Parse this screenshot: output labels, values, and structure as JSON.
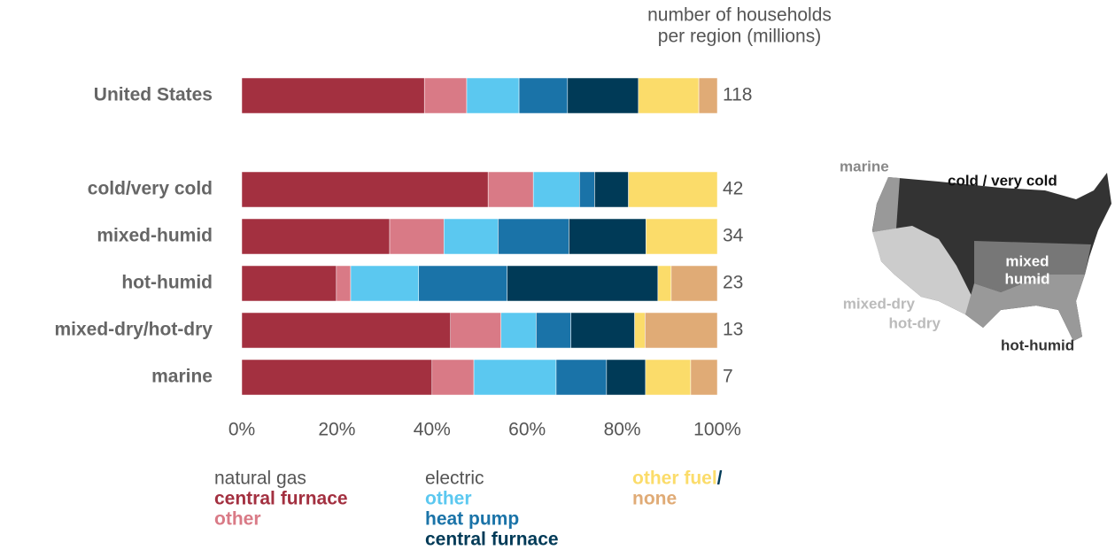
{
  "chart_data": {
    "type": "stacked-bar",
    "categories": [
      "United States",
      "cold/very cold",
      "mixed-humid",
      "hot-humid",
      "mixed-dry/hot-dry",
      "marine"
    ],
    "series": [
      {
        "name": "central furnace",
        "group": "natural gas",
        "color": "#a33040",
        "values": [
          38.4,
          51.8,
          31.1,
          19.9,
          43.9,
          40.0
        ]
      },
      {
        "name": "other",
        "group": "natural gas",
        "color": "#d97a86",
        "values": [
          8.9,
          9.5,
          11.4,
          3.0,
          10.6,
          8.8
        ]
      },
      {
        "name": "other",
        "group": "electric",
        "color": "#5bc8f0",
        "values": [
          11.0,
          9.7,
          11.4,
          14.3,
          7.4,
          17.3
        ]
      },
      {
        "name": "heat pump",
        "group": "electric",
        "color": "#1a73a8",
        "values": [
          10.2,
          3.2,
          14.9,
          18.6,
          7.3,
          10.6
        ]
      },
      {
        "name": "central furnace",
        "group": "electric",
        "color": "#003a57",
        "values": [
          14.9,
          7.1,
          16.2,
          31.7,
          13.4,
          8.2
        ]
      },
      {
        "name": "other fuel",
        "color": "#fbdc6a",
        "values": [
          12.7,
          18.7,
          15.0,
          2.8,
          2.2,
          9.5
        ]
      },
      {
        "name": "none",
        "color": "#e0ab76",
        "values": [
          3.9,
          0,
          0,
          9.7,
          15.2,
          5.6
        ]
      }
    ],
    "legend_separator": "/",
    "xlim": [
      0,
      100
    ],
    "xticks": [
      {
        "value": 0,
        "label": "0%"
      },
      {
        "value": 20,
        "label": "20%"
      },
      {
        "value": 40,
        "label": "40%"
      },
      {
        "value": 60,
        "label": "60%"
      },
      {
        "value": 80,
        "label": "80%"
      },
      {
        "value": 100,
        "label": "100%"
      }
    ],
    "households_title": [
      "number of households",
      "per region (millions)"
    ],
    "households": [
      118,
      42,
      34,
      23,
      13,
      7
    ],
    "map_labels": [
      "marine",
      "cold / very cold",
      "mixed",
      "humid",
      "mixed-dry",
      "hot-dry",
      "hot-humid"
    ]
  }
}
